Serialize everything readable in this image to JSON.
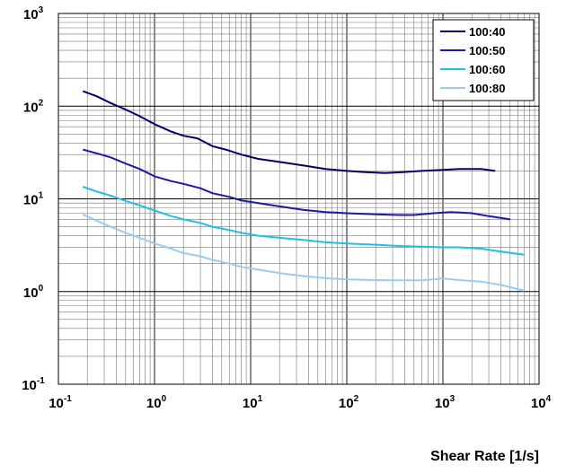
{
  "chart_data": {
    "type": "line",
    "xlabel": "Shear Rate [1/s]",
    "ylabel": "",
    "x_scale": "log",
    "y_scale": "log",
    "xlim": [
      0.1,
      10000
    ],
    "ylim": [
      0.1,
      1000
    ],
    "grid": true,
    "legend_position": "top-right",
    "x_ticks": [
      {
        "base": "10",
        "exp": "-1",
        "value": 0.1
      },
      {
        "base": "10",
        "exp": "0",
        "value": 1
      },
      {
        "base": "10",
        "exp": "1",
        "value": 10
      },
      {
        "base": "10",
        "exp": "2",
        "value": 100
      },
      {
        "base": "10",
        "exp": "3",
        "value": 1000
      },
      {
        "base": "10",
        "exp": "4",
        "value": 10000
      }
    ],
    "y_ticks": [
      {
        "base": "10",
        "exp": "-1",
        "value": 0.1
      },
      {
        "base": "10",
        "exp": "0",
        "value": 1
      },
      {
        "base": "10",
        "exp": "1",
        "value": 10
      },
      {
        "base": "10",
        "exp": "2",
        "value": 100
      },
      {
        "base": "10",
        "exp": "3",
        "value": 1000
      }
    ],
    "series": [
      {
        "name": "100:40",
        "color": "#000066",
        "points": [
          [
            0.18,
            145
          ],
          [
            0.25,
            128
          ],
          [
            0.35,
            108
          ],
          [
            0.5,
            92
          ],
          [
            0.7,
            78
          ],
          [
            1,
            64
          ],
          [
            1.5,
            53
          ],
          [
            2,
            48
          ],
          [
            2.8,
            45
          ],
          [
            4,
            37
          ],
          [
            5.5,
            34
          ],
          [
            8,
            30
          ],
          [
            12,
            27
          ],
          [
            20,
            25
          ],
          [
            35,
            23
          ],
          [
            60,
            21
          ],
          [
            100,
            20
          ],
          [
            150,
            19.5
          ],
          [
            250,
            19
          ],
          [
            400,
            19.5
          ],
          [
            600,
            20
          ],
          [
            1000,
            20.5
          ],
          [
            1500,
            21
          ],
          [
            2500,
            21
          ],
          [
            3500,
            20
          ]
        ]
      },
      {
        "name": "100:50",
        "color": "#1a1aa6",
        "points": [
          [
            0.18,
            34
          ],
          [
            0.25,
            31
          ],
          [
            0.35,
            28
          ],
          [
            0.5,
            24
          ],
          [
            0.7,
            21
          ],
          [
            1,
            17.5
          ],
          [
            1.5,
            15.5
          ],
          [
            2,
            14.5
          ],
          [
            3,
            13
          ],
          [
            4,
            11.5
          ],
          [
            6,
            10.5
          ],
          [
            8,
            9.6
          ],
          [
            12,
            9
          ],
          [
            20,
            8.3
          ],
          [
            35,
            7.6
          ],
          [
            60,
            7.2
          ],
          [
            100,
            7
          ],
          [
            200,
            6.8
          ],
          [
            350,
            6.7
          ],
          [
            500,
            6.7
          ],
          [
            800,
            7
          ],
          [
            1200,
            7.2
          ],
          [
            2000,
            7
          ],
          [
            3000,
            6.5
          ],
          [
            5000,
            6
          ]
        ]
      },
      {
        "name": "100:60",
        "color": "#1fc0e0",
        "points": [
          [
            0.18,
            13.5
          ],
          [
            0.25,
            12
          ],
          [
            0.35,
            10.8
          ],
          [
            0.5,
            9.5
          ],
          [
            0.7,
            8.5
          ],
          [
            1,
            7.5
          ],
          [
            1.5,
            6.5
          ],
          [
            2,
            6
          ],
          [
            3,
            5.5
          ],
          [
            4,
            5
          ],
          [
            6,
            4.6
          ],
          [
            8,
            4.3
          ],
          [
            12,
            4
          ],
          [
            20,
            3.8
          ],
          [
            35,
            3.6
          ],
          [
            60,
            3.4
          ],
          [
            100,
            3.3
          ],
          [
            200,
            3.2
          ],
          [
            350,
            3.1
          ],
          [
            600,
            3.05
          ],
          [
            1000,
            3
          ],
          [
            1500,
            3
          ],
          [
            2500,
            2.9
          ],
          [
            4000,
            2.7
          ],
          [
            7000,
            2.5
          ]
        ]
      },
      {
        "name": "100:80",
        "color": "#99ccf2",
        "points": [
          [
            0.18,
            6.8
          ],
          [
            0.25,
            5.8
          ],
          [
            0.35,
            5
          ],
          [
            0.5,
            4.3
          ],
          [
            0.7,
            3.8
          ],
          [
            1,
            3.3
          ],
          [
            1.5,
            2.9
          ],
          [
            2,
            2.6
          ],
          [
            3,
            2.4
          ],
          [
            4,
            2.2
          ],
          [
            6,
            2
          ],
          [
            8,
            1.85
          ],
          [
            12,
            1.72
          ],
          [
            20,
            1.58
          ],
          [
            35,
            1.47
          ],
          [
            60,
            1.4
          ],
          [
            100,
            1.35
          ],
          [
            200,
            1.33
          ],
          [
            350,
            1.32
          ],
          [
            600,
            1.32
          ],
          [
            1000,
            1.38
          ],
          [
            1500,
            1.33
          ],
          [
            2500,
            1.28
          ],
          [
            4000,
            1.18
          ],
          [
            7000,
            1.02
          ]
        ]
      }
    ]
  }
}
